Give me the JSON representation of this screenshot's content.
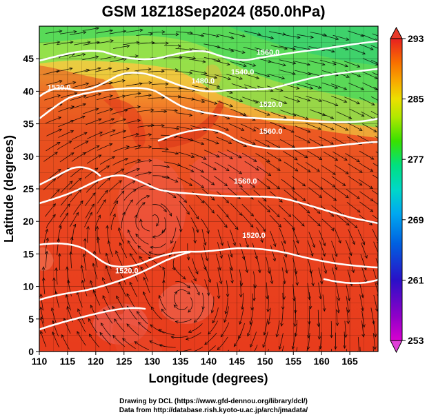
{
  "title": "GSM 18Z18Sep2024 (850.0hPa)",
  "x_axis": {
    "label": "Longitude (degrees)",
    "range": [
      110,
      170
    ],
    "ticks": [
      "110",
      "115",
      "120",
      "125",
      "130",
      "135",
      "140",
      "145",
      "150",
      "155",
      "160",
      "165"
    ],
    "tick_values": [
      110,
      115,
      120,
      125,
      130,
      135,
      140,
      145,
      150,
      155,
      160,
      165
    ]
  },
  "y_axis": {
    "label": "Latitude (degrees)",
    "range": [
      0,
      50
    ],
    "ticks": [
      "0",
      "5",
      "10",
      "15",
      "20",
      "25",
      "30",
      "35",
      "40",
      "45"
    ],
    "tick_values": [
      0,
      5,
      10,
      15,
      20,
      25,
      30,
      35,
      40,
      45
    ]
  },
  "colorbar": {
    "min": 253,
    "max": 293,
    "labels": [
      "293",
      "285",
      "277",
      "269",
      "261",
      "253"
    ],
    "label_values": [
      293,
      285,
      277,
      269,
      261,
      253
    ],
    "colors": [
      "#d800d0",
      "#9000c8",
      "#2a10c8",
      "#0060e0",
      "#00a8f0",
      "#00d8c8",
      "#00e080",
      "#38e000",
      "#b0e800",
      "#ece000",
      "#f8a800",
      "#f87000",
      "#f03818",
      "#e82020"
    ]
  },
  "contour_labels": [
    {
      "text": "1560.0",
      "lon": 150.5,
      "lat": 45.6
    },
    {
      "text": "1540.0",
      "lon": 146.0,
      "lat": 42.6
    },
    {
      "text": "1520.0",
      "lon": 113.5,
      "lat": 40.2
    },
    {
      "text": "1480.0",
      "lon": 139.0,
      "lat": 41.2
    },
    {
      "text": "1520.0",
      "lon": 151.0,
      "lat": 37.6
    },
    {
      "text": "1560.0",
      "lon": 151.0,
      "lat": 33.5
    },
    {
      "text": "1560.0",
      "lon": 146.5,
      "lat": 25.8
    },
    {
      "text": "1520.0",
      "lon": 148.0,
      "lat": 17.5
    },
    {
      "text": "1520.0",
      "lon": 125.5,
      "lat": 12.0
    }
  ],
  "footer": {
    "line1": "Drawing by DCL (https://www.gfd-dennou.org/library/dcl/)",
    "line2": "Data from http://database.rish.kyoto-u.ac.jp/arch/jmadata/"
  }
}
